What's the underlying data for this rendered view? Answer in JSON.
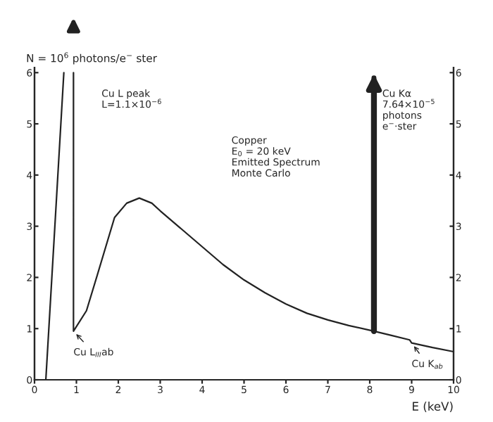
{
  "chart_data": {
    "type": "line",
    "xlabel": "E (keV)",
    "ylabel": "N = 10$^{6}$ photons/e$^{−}$ ster",
    "xlim": [
      0,
      10
    ],
    "xticks": [
      0,
      1,
      2,
      3,
      4,
      5,
      6,
      7,
      8,
      9,
      10
    ],
    "ylim": [
      0,
      6.1
    ],
    "yticks": [
      0,
      1,
      2,
      3,
      4,
      5,
      6
    ],
    "y2lim": [
      0,
      6.1
    ],
    "y2ticks": [
      0,
      1,
      2,
      3,
      4,
      5,
      6
    ],
    "series": [
      {
        "color": "#222222",
        "x": [
          0.27,
          0.5,
          0.7,
          0.82,
          0.93,
          0.93,
          1.24,
          1.5,
          1.91,
          2.2,
          2.5,
          2.8,
          3.0,
          3.5,
          4.0,
          4.5,
          5.0,
          5.5,
          6.0,
          6.5,
          7.0,
          7.5,
          8.1,
          8.5,
          8.95,
          9.0,
          9.5,
          10.0
        ],
        "values": [
          0,
          3.2,
          6.0,
          null,
          6.0,
          0.95,
          1.35,
          2.05,
          3.17,
          3.45,
          3.55,
          3.45,
          3.3,
          2.95,
          2.6,
          2.25,
          1.95,
          1.7,
          1.48,
          1.3,
          1.17,
          1.06,
          0.95,
          0.87,
          0.78,
          0.72,
          0.63,
          0.55
        ]
      },
      {
        "color": "#222222",
        "x": [
          8.1,
          8.1
        ],
        "values": [
          0.95,
          5.8
        ]
      }
    ],
    "annotations": [
      "Cu L peak\nL=1.1×10$^{−6}$",
      "Cu Kα\n7.64×10$^{−5}$\nphotons\ne$^{−}$·ster",
      "Copper\nE$_{0}$ = 20 keV\nEmitted Spectrum\nMonte Carlo",
      {
        "text": "Cu L$_{III}$ab",
        "x": 0.93,
        "y": 0.95
      },
      {
        "text": "Cu K$_{ab}$",
        "x": 9.0,
        "y": 0.72
      }
    ],
    "grid": false,
    "legend": false
  }
}
